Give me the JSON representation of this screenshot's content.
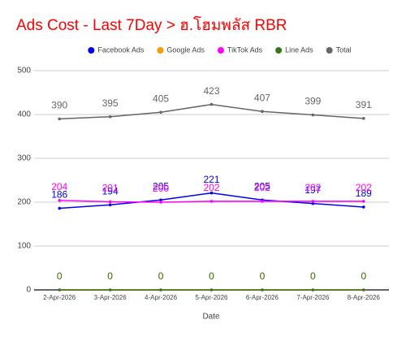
{
  "chart_data": {
    "type": "line",
    "title": "Ads Cost - Last 7Day > ฮ.โฮมพลัส RBR",
    "x_label": "Date",
    "categories": [
      "2-Apr-2026",
      "3-Apr-2026",
      "4-Apr-2026",
      "5-Apr-2026",
      "6-Apr-2026",
      "7-Apr-2026",
      "8-Apr-2026"
    ],
    "series": [
      {
        "name": "Facebook Ads",
        "color": "#0000ee",
        "values": [
          186,
          194,
          205,
          221,
          205,
          197,
          189
        ]
      },
      {
        "name": "Google Ads",
        "color": "#ff9900",
        "values": [
          0,
          0,
          0,
          0,
          0,
          0,
          0
        ]
      },
      {
        "name": "TikTok Ads",
        "color": "#ff00ff",
        "values": [
          204,
          201,
          200,
          202,
          202,
          202,
          202
        ]
      },
      {
        "name": "Line Ads",
        "color": "#38761d",
        "values": [
          0,
          0,
          0,
          0,
          0,
          0,
          0
        ]
      },
      {
        "name": "Total",
        "color": "#666666",
        "values": [
          390,
          395,
          405,
          423,
          407,
          399,
          391
        ]
      }
    ],
    "ylim": [
      0,
      500
    ],
    "yticks": [
      0,
      100,
      200,
      300,
      400,
      500
    ],
    "grid": true,
    "legend": "top"
  }
}
